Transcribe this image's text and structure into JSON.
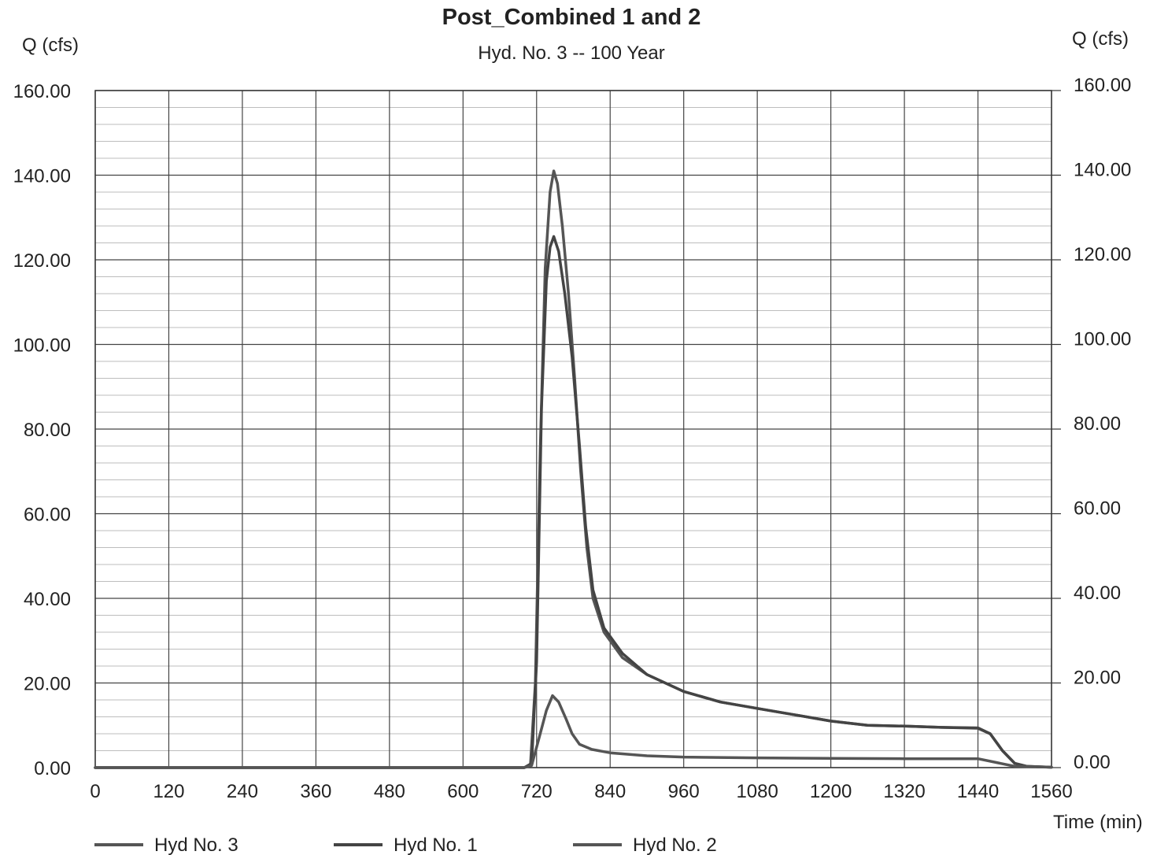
{
  "chart_data": {
    "type": "line",
    "title": "Post_Combined 1 and 2",
    "subtitle": "Hyd. No. 3 -- 100 Year",
    "ylabel_left": "Q (cfs)",
    "ylabel_right": "Q (cfs)",
    "xlabel": "Time (min)",
    "xlim": [
      0,
      1560
    ],
    "ylim": [
      0,
      160
    ],
    "x_ticks": [
      "0",
      "120",
      "240",
      "360",
      "480",
      "600",
      "720",
      "840",
      "960",
      "1080",
      "1200",
      "1320",
      "1440",
      "1560"
    ],
    "y_ticks": [
      "0.00",
      "20.00",
      "40.00",
      "60.00",
      "80.00",
      "100.00",
      "120.00",
      "140.00",
      "160.00"
    ],
    "grid": true,
    "legend_position": "bottom",
    "series": [
      {
        "name": "Hyd No. 3",
        "color": "#555555",
        "points": [
          [
            0,
            0
          ],
          [
            700,
            0
          ],
          [
            710,
            0.8
          ],
          [
            718,
            20
          ],
          [
            726,
            75
          ],
          [
            734,
            118
          ],
          [
            742,
            136
          ],
          [
            748,
            141
          ],
          [
            754,
            138
          ],
          [
            762,
            128
          ],
          [
            772,
            112
          ],
          [
            782,
            92
          ],
          [
            792,
            70
          ],
          [
            802,
            52
          ],
          [
            812,
            40
          ],
          [
            830,
            32
          ],
          [
            860,
            26
          ],
          [
            900,
            22
          ],
          [
            960,
            18
          ],
          [
            1020,
            15.5
          ],
          [
            1080,
            14
          ],
          [
            1140,
            12.5
          ],
          [
            1200,
            11
          ],
          [
            1260,
            10
          ],
          [
            1320,
            9.8
          ],
          [
            1380,
            9.5
          ],
          [
            1440,
            9.4
          ],
          [
            1460,
            8
          ],
          [
            1480,
            4
          ],
          [
            1500,
            1
          ],
          [
            1520,
            0.3
          ],
          [
            1560,
            0.1
          ]
        ]
      },
      {
        "name": "Hyd No. 1",
        "color": "#444444",
        "points": [
          [
            0,
            0
          ],
          [
            700,
            0
          ],
          [
            712,
            1
          ],
          [
            720,
            25
          ],
          [
            728,
            85
          ],
          [
            736,
            115
          ],
          [
            742,
            123
          ],
          [
            748,
            125.5
          ],
          [
            756,
            122
          ],
          [
            766,
            112
          ],
          [
            778,
            97
          ],
          [
            790,
            76
          ],
          [
            800,
            57
          ],
          [
            812,
            42
          ],
          [
            830,
            33
          ],
          [
            860,
            27
          ],
          [
            900,
            22
          ],
          [
            960,
            18
          ],
          [
            1020,
            15.5
          ],
          [
            1080,
            14
          ],
          [
            1140,
            12.5
          ],
          [
            1200,
            11
          ],
          [
            1260,
            10
          ],
          [
            1320,
            9.8
          ],
          [
            1380,
            9.5
          ],
          [
            1440,
            9.3
          ],
          [
            1460,
            8
          ],
          [
            1480,
            4
          ],
          [
            1500,
            1
          ],
          [
            1520,
            0.3
          ],
          [
            1560,
            0.1
          ]
        ]
      },
      {
        "name": "Hyd No. 2",
        "color": "#555555",
        "points": [
          [
            0,
            0
          ],
          [
            700,
            0
          ],
          [
            712,
            0.5
          ],
          [
            724,
            7
          ],
          [
            736,
            13.5
          ],
          [
            746,
            17
          ],
          [
            756,
            15.5
          ],
          [
            768,
            11.5
          ],
          [
            778,
            8
          ],
          [
            790,
            5.5
          ],
          [
            810,
            4.3
          ],
          [
            840,
            3.5
          ],
          [
            900,
            2.8
          ],
          [
            960,
            2.5
          ],
          [
            1080,
            2.3
          ],
          [
            1200,
            2.2
          ],
          [
            1320,
            2.1
          ],
          [
            1440,
            2.1
          ],
          [
            1470,
            1.2
          ],
          [
            1500,
            0.3
          ],
          [
            1560,
            0.1
          ]
        ]
      }
    ]
  }
}
